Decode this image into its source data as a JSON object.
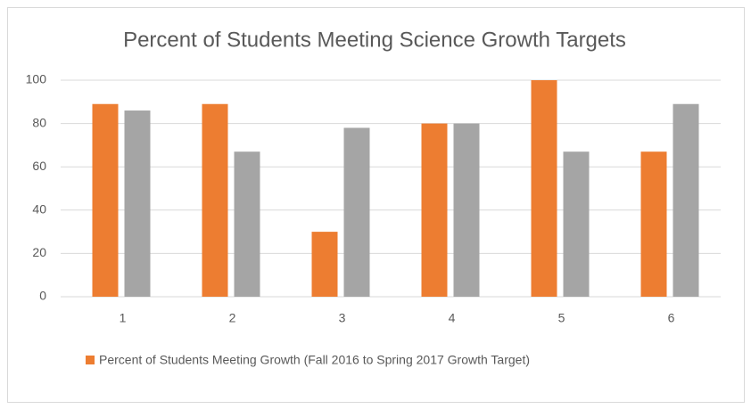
{
  "chart_data": {
    "type": "bar",
    "title": "Percent of Students Meeting Science Growth Targets",
    "categories": [
      "1",
      "2",
      "3",
      "4",
      "5",
      "6"
    ],
    "series": [
      {
        "name": "Percent of Students Meeting Growth (Fall 2016 to Spring 2017 Growth Target)",
        "color": "#ed7d31",
        "values": [
          89,
          89,
          30,
          80,
          100,
          67
        ]
      },
      {
        "color": "#a5a5a5",
        "values": [
          86,
          67,
          78,
          80,
          67,
          89
        ]
      }
    ],
    "ylim": [
      0,
      100
    ],
    "yticks": [
      0,
      20,
      40,
      60,
      80,
      100
    ],
    "grid": true,
    "legend": "bottom"
  }
}
